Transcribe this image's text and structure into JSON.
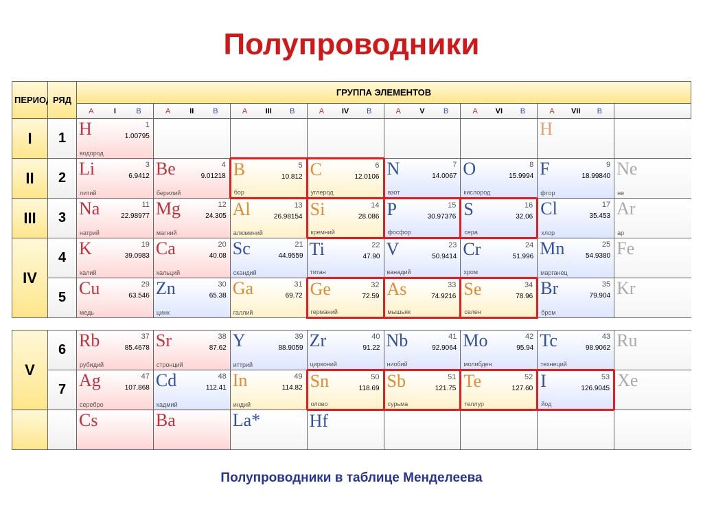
{
  "title": "Полупроводники",
  "caption": "Полупроводники в таблице Менделеева",
  "title_color": "#d01818",
  "caption_color": "#283593",
  "highlight_border": "#e02020",
  "header_bg": [
    "#fff8d8",
    "#ffe68a"
  ],
  "hdr": {
    "period": "ПЕРИОД",
    "row": "РЯД",
    "groups": "ГРУППА ЭЛЕМЕНТОВ"
  },
  "group_labels": [
    "I",
    "II",
    "III",
    "IV",
    "V",
    "VI",
    "VII"
  ],
  "sub_ab": [
    "A",
    "",
    "B"
  ],
  "periods": [
    {
      "period": "I",
      "rows": [
        {
          "n": "1",
          "cells": [
            {
              "sym": "H",
              "num": "1",
              "mass": "1.00795",
              "name": "водород",
              "c": "#c72f3a",
              "bg": "pink"
            },
            {
              "empty": true
            },
            {
              "empty": true
            },
            {
              "empty": true
            },
            {
              "empty": true
            },
            {
              "empty": true
            },
            {
              "sym": "H",
              "num": "",
              "mass": "",
              "name": "",
              "c": "#e6a070",
              "bg": "",
              "out": true
            },
            {
              "empty": true,
              "cut": true
            }
          ]
        }
      ]
    },
    {
      "period": "II",
      "rows": [
        {
          "n": "2",
          "cells": [
            {
              "sym": "Li",
              "num": "3",
              "mass": "6.9412",
              "name": "литий",
              "c": "#c72f3a",
              "bg": "pink"
            },
            {
              "sym": "Be",
              "num": "4",
              "mass": "9.01218",
              "name": "берилий",
              "c": "#c72f3a",
              "bg": "pink"
            },
            {
              "sym": "B",
              "num": "5",
              "mass": "10.812",
              "name": "бор",
              "c": "#e68a2e",
              "bg": "yellow",
              "hl": true
            },
            {
              "sym": "C",
              "num": "6",
              "mass": "12.0106",
              "name": "углерод",
              "c": "#e68a2e",
              "bg": "yellow",
              "hl": true
            },
            {
              "sym": "N",
              "num": "7",
              "mass": "14.0067",
              "name": "азот",
              "c": "#3050a0",
              "bg": "blue"
            },
            {
              "sym": "O",
              "num": "8",
              "mass": "15.9994",
              "name": "кислород",
              "c": "#3050a0",
              "bg": "blue"
            },
            {
              "sym": "F",
              "num": "9",
              "mass": "18.99840",
              "name": "фтор",
              "c": "#3050a0",
              "bg": "blue"
            },
            {
              "sym": "Ne",
              "name": "не",
              "c": "#aaa",
              "cut": true
            }
          ]
        }
      ]
    },
    {
      "period": "III",
      "rows": [
        {
          "n": "3",
          "cells": [
            {
              "sym": "Na",
              "num": "11",
              "mass": "22.98977",
              "name": "натрий",
              "c": "#c72f3a",
              "bg": "pink"
            },
            {
              "sym": "Mg",
              "num": "12",
              "mass": "24.305",
              "name": "магний",
              "c": "#c72f3a",
              "bg": "pink"
            },
            {
              "sym": "Al",
              "num": "13",
              "mass": "26.98154",
              "name": "алюминий",
              "c": "#e68a2e",
              "bg": "yellow"
            },
            {
              "sym": "Si",
              "num": "14",
              "mass": "28.086",
              "name": "кремний",
              "c": "#e68a2e",
              "bg": "yellow",
              "hl": true
            },
            {
              "sym": "P",
              "num": "15",
              "mass": "30.97376",
              "name": "фосфор",
              "c": "#3050a0",
              "bg": "blue",
              "hl": true
            },
            {
              "sym": "S",
              "num": "16",
              "mass": "32.06",
              "name": "сера",
              "c": "#3050a0",
              "bg": "blue",
              "hl": true
            },
            {
              "sym": "Cl",
              "num": "17",
              "mass": "35.453",
              "name": "хлор",
              "c": "#3050a0",
              "bg": "blue"
            },
            {
              "sym": "Ar",
              "name": "ар",
              "c": "#aaa",
              "cut": true
            }
          ]
        }
      ]
    },
    {
      "period": "IV",
      "rows": [
        {
          "n": "4",
          "cells": [
            {
              "sym": "K",
              "num": "19",
              "mass": "39.0983",
              "name": "калий",
              "c": "#c72f3a",
              "bg": "pink"
            },
            {
              "sym": "Ca",
              "num": "20",
              "mass": "40.08",
              "name": "кальций",
              "c": "#c72f3a",
              "bg": "pink"
            },
            {
              "sym": "Sc",
              "num": "21",
              "mass": "44.9559",
              "name": "скандий",
              "c": "#3050a0",
              "bg": "blue"
            },
            {
              "sym": "Ti",
              "num": "22",
              "mass": "47.90",
              "name": "титан",
              "c": "#3050a0",
              "bg": "blue"
            },
            {
              "sym": "V",
              "num": "23",
              "mass": "50.9414",
              "name": "ванадий",
              "c": "#3050a0",
              "bg": "blue"
            },
            {
              "sym": "Cr",
              "num": "24",
              "mass": "51.996",
              "name": "хром",
              "c": "#3050a0",
              "bg": "blue"
            },
            {
              "sym": "Mn",
              "num": "25",
              "mass": "54.9380",
              "name": "марганец",
              "c": "#3050a0",
              "bg": "blue"
            },
            {
              "sym": "Fe",
              "c": "#aaa",
              "cut": true
            }
          ]
        },
        {
          "n": "5",
          "cells": [
            {
              "sym": "Cu",
              "num": "29",
              "mass": "63.546",
              "name": "медь",
              "c": "#c72f3a",
              "bg": "pink"
            },
            {
              "sym": "Zn",
              "num": "30",
              "mass": "65.38",
              "name": "цинк",
              "c": "#3050a0",
              "bg": "blue"
            },
            {
              "sym": "Ga",
              "num": "31",
              "mass": "69.72",
              "name": "галлий",
              "c": "#e68a2e",
              "bg": "yellow"
            },
            {
              "sym": "Ge",
              "num": "32",
              "mass": "72.59",
              "name": "германий",
              "c": "#e68a2e",
              "bg": "yellow",
              "hl": true
            },
            {
              "sym": "As",
              "num": "33",
              "mass": "74.9216",
              "name": "мышьяк",
              "c": "#e68a2e",
              "bg": "yellow",
              "hl": true
            },
            {
              "sym": "Se",
              "num": "34",
              "mass": "78.96",
              "name": "селен",
              "c": "#e68a2e",
              "bg": "yellow",
              "hl": true
            },
            {
              "sym": "Br",
              "num": "35",
              "mass": "79.904",
              "name": "бром",
              "c": "#3050a0",
              "bg": "blue"
            },
            {
              "sym": "Kr",
              "c": "#aaa",
              "cut": true
            }
          ]
        }
      ]
    },
    {
      "spacer": true
    },
    {
      "period": "V",
      "rows": [
        {
          "n": "6",
          "cells": [
            {
              "sym": "Rb",
              "num": "37",
              "mass": "85.4678",
              "name": "рубидий",
              "c": "#c72f3a",
              "bg": "pink"
            },
            {
              "sym": "Sr",
              "num": "38",
              "mass": "87.62",
              "name": "стронций",
              "c": "#c72f3a",
              "bg": "pink"
            },
            {
              "sym": "Y",
              "num": "39",
              "mass": "88.9059",
              "name": "иттрий",
              "c": "#3050a0",
              "bg": "blue"
            },
            {
              "sym": "Zr",
              "num": "40",
              "mass": "91.22",
              "name": "цирконий",
              "c": "#3050a0",
              "bg": "blue"
            },
            {
              "sym": "Nb",
              "num": "41",
              "mass": "92.9064",
              "name": "ниобий",
              "c": "#3050a0",
              "bg": "blue"
            },
            {
              "sym": "Mo",
              "num": "42",
              "mass": "95.94",
              "name": "молибден",
              "c": "#3050a0",
              "bg": "blue"
            },
            {
              "sym": "Tc",
              "num": "43",
              "mass": "98.9062",
              "name": "технеций",
              "c": "#3050a0",
              "bg": "blue"
            },
            {
              "sym": "Ru",
              "c": "#aaa",
              "cut": true
            }
          ]
        },
        {
          "n": "7",
          "cells": [
            {
              "sym": "Ag",
              "num": "47",
              "mass": "107.868",
              "name": "серебро",
              "c": "#c72f3a",
              "bg": "pink"
            },
            {
              "sym": "Cd",
              "num": "48",
              "mass": "112.41",
              "name": "кадмий",
              "c": "#3050a0",
              "bg": "blue"
            },
            {
              "sym": "In",
              "num": "49",
              "mass": "114.82",
              "name": "индий",
              "c": "#e68a2e",
              "bg": "yellow"
            },
            {
              "sym": "Sn",
              "num": "50",
              "mass": "118.69",
              "name": "олово",
              "c": "#e68a2e",
              "bg": "yellow",
              "hl": true
            },
            {
              "sym": "Sb",
              "num": "51",
              "mass": "121.75",
              "name": "сурьма",
              "c": "#e68a2e",
              "bg": "yellow",
              "hl": true
            },
            {
              "sym": "Te",
              "num": "52",
              "mass": "127.60",
              "name": "теллур",
              "c": "#e68a2e",
              "bg": "yellow",
              "hl": true
            },
            {
              "sym": "I",
              "num": "53",
              "mass": "126.9045",
              "name": "йод",
              "c": "#3050a0",
              "bg": "blue",
              "hl": true
            },
            {
              "sym": "Xe",
              "c": "#aaa",
              "cut": true
            }
          ]
        }
      ]
    },
    {
      "period": "",
      "rows": [
        {
          "n": "",
          "cells": [
            {
              "sym": "Cs",
              "c": "#c72f3a",
              "bg": "pink",
              "half": true
            },
            {
              "sym": "Ba",
              "c": "#c72f3a",
              "bg": "pink",
              "half": true
            },
            {
              "sym": "La*",
              "c": "#3050a0",
              "half": true
            },
            {
              "sym": "Hf",
              "c": "#3050a0",
              "half": true
            },
            {
              "sym": "",
              "half": true
            },
            {
              "sym": "",
              "half": true
            },
            {
              "sym": "",
              "half": true
            },
            {
              "sym": "",
              "cut": true,
              "half": true
            }
          ]
        }
      ]
    }
  ]
}
